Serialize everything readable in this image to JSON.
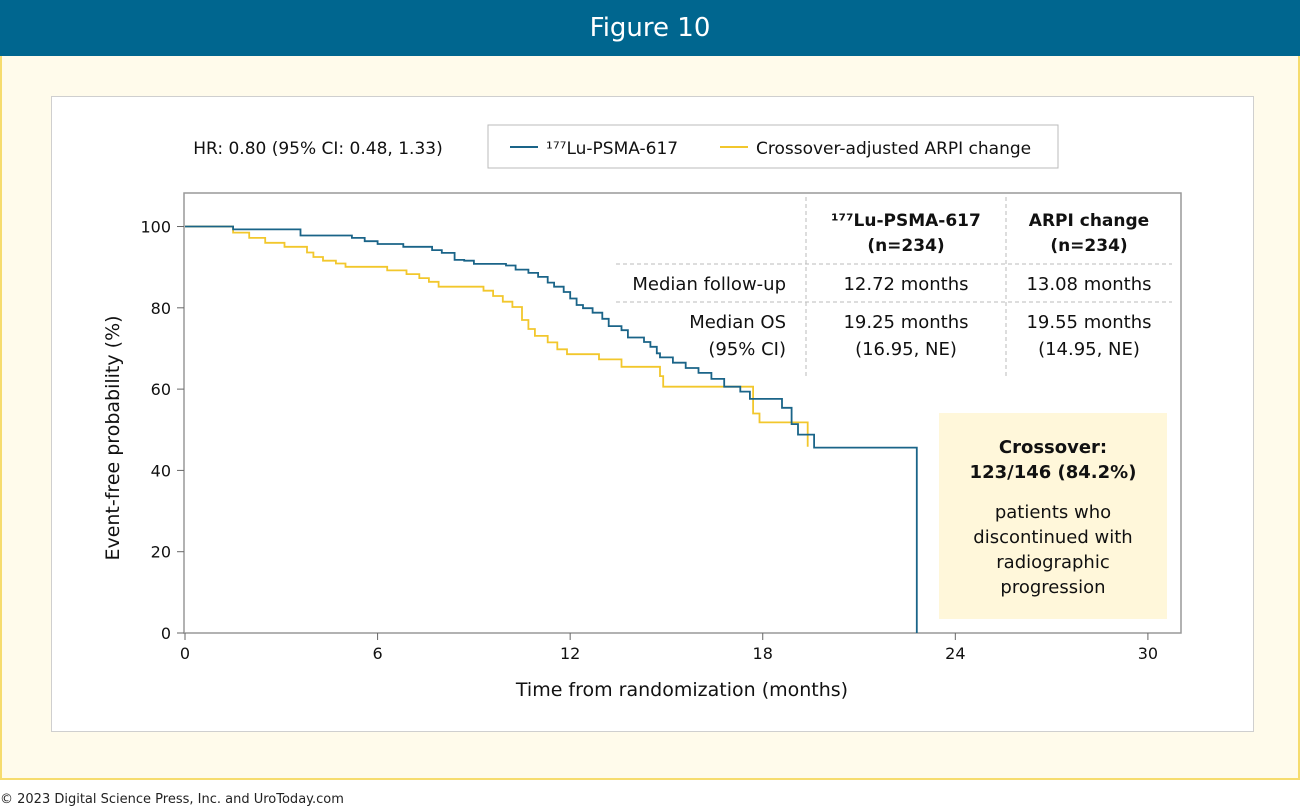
{
  "figure_title": "Figure 10",
  "copyright": "© 2023 Digital Science Press, Inc. and UroToday.com",
  "hr_text": "HR: 0.80 (95% CI: 0.48, 1.33)",
  "legend": [
    {
      "name": "¹⁷⁷Lu-PSMA-617",
      "color": "#1a6488"
    },
    {
      "name": "Crossover-adjusted ARPI change",
      "color": "#f2c72c"
    }
  ],
  "stats_table": {
    "col1_header": [
      "¹⁷⁷Lu-PSMA-617",
      "(n=234)"
    ],
    "col2_header": [
      "ARPI change",
      "(n=234)"
    ],
    "rows": [
      {
        "label": [
          "Median follow-up"
        ],
        "v1": [
          "12.72 months"
        ],
        "v2": [
          "13.08 months"
        ]
      },
      {
        "label": [
          "Median OS",
          "(95% CI)"
        ],
        "v1": [
          "19.25 months",
          "(16.95, NE)"
        ],
        "v2": [
          "19.55 months",
          "(14.95, NE)"
        ]
      }
    ]
  },
  "crossover_box": {
    "title": [
      "Crossover:",
      "123/146 (84.2%)"
    ],
    "body": [
      "patients who",
      "discontinued with",
      "radiographic",
      "progression"
    ],
    "bg_color": "#fff7da"
  },
  "chart_data": {
    "type": "line",
    "xlabel": "Time from randomization (months)",
    "ylabel": "Event-free probability (%)",
    "xlim": [
      0,
      31
    ],
    "ylim": [
      0,
      108
    ],
    "x_ticks": [
      0,
      6,
      12,
      18,
      24,
      30
    ],
    "y_ticks": [
      0,
      20,
      40,
      60,
      80,
      100
    ],
    "series": [
      {
        "name": "¹⁷⁷Lu-PSMA-617",
        "color": "#1a6488",
        "points": [
          [
            0,
            100
          ],
          [
            1.5,
            99.3
          ],
          [
            3.6,
            97.8
          ],
          [
            5.2,
            97.2
          ],
          [
            5.6,
            96.4
          ],
          [
            6.0,
            95.7
          ],
          [
            6.8,
            95.0
          ],
          [
            7.7,
            94.2
          ],
          [
            8.0,
            93.5
          ],
          [
            8.4,
            91.8
          ],
          [
            8.7,
            91.6
          ],
          [
            9.0,
            90.8
          ],
          [
            10.0,
            90.4
          ],
          [
            10.3,
            89.4
          ],
          [
            10.7,
            88.6
          ],
          [
            11.0,
            87.6
          ],
          [
            11.3,
            86.2
          ],
          [
            11.5,
            85.2
          ],
          [
            11.8,
            83.9
          ],
          [
            12.0,
            82.3
          ],
          [
            12.2,
            80.7
          ],
          [
            12.4,
            79.9
          ],
          [
            12.7,
            78.8
          ],
          [
            13.0,
            77.3
          ],
          [
            13.2,
            75.5
          ],
          [
            13.6,
            74.5
          ],
          [
            13.8,
            72.7
          ],
          [
            14.3,
            71.6
          ],
          [
            14.5,
            70.4
          ],
          [
            14.7,
            68.8
          ],
          [
            14.8,
            67.8
          ],
          [
            15.2,
            66.5
          ],
          [
            15.6,
            65.2
          ],
          [
            16.0,
            64.0
          ],
          [
            16.4,
            62.5
          ],
          [
            16.8,
            60.6
          ],
          [
            17.3,
            59.4
          ],
          [
            17.6,
            57.6
          ],
          [
            18.6,
            55.4
          ],
          [
            18.9,
            51.4
          ],
          [
            19.1,
            48.8
          ],
          [
            19.6,
            45.6
          ],
          [
            22.8,
            45.6
          ],
          [
            22.8,
            0
          ]
        ]
      },
      {
        "name": "Crossover-adjusted ARPI change",
        "color": "#f2c72c",
        "points": [
          [
            0,
            100
          ],
          [
            1.5,
            98.5
          ],
          [
            2.0,
            97.2
          ],
          [
            2.5,
            96.0
          ],
          [
            3.1,
            95.0
          ],
          [
            3.8,
            93.6
          ],
          [
            4.0,
            92.5
          ],
          [
            4.3,
            91.6
          ],
          [
            4.7,
            90.9
          ],
          [
            5.0,
            90.1
          ],
          [
            6.3,
            89.2
          ],
          [
            6.9,
            88.3
          ],
          [
            7.3,
            87.3
          ],
          [
            7.6,
            86.4
          ],
          [
            7.9,
            85.2
          ],
          [
            9.3,
            84.2
          ],
          [
            9.6,
            82.9
          ],
          [
            9.9,
            81.5
          ],
          [
            10.2,
            80.2
          ],
          [
            10.5,
            77.0
          ],
          [
            10.7,
            74.8
          ],
          [
            10.9,
            73.1
          ],
          [
            11.3,
            71.5
          ],
          [
            11.6,
            69.8
          ],
          [
            11.9,
            68.6
          ],
          [
            12.9,
            67.3
          ],
          [
            13.6,
            65.5
          ],
          [
            14.8,
            63.2
          ],
          [
            14.9,
            60.6
          ],
          [
            17.7,
            54.0
          ],
          [
            17.9,
            51.8
          ],
          [
            18.6,
            51.8
          ],
          [
            19.0,
            51.8
          ],
          [
            19.4,
            45.8
          ]
        ]
      }
    ]
  }
}
